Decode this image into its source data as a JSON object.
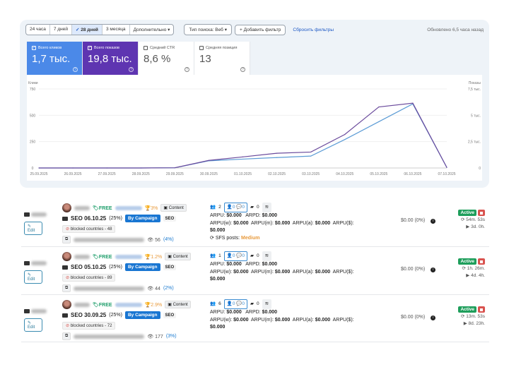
{
  "filters": {
    "periods": [
      "24 часа",
      "7 дней",
      "28 дней",
      "3 месяца"
    ],
    "active_period": "28 дней",
    "more": "Дополнительно",
    "search_type": "Тип поиска: Веб",
    "add_filter": "Добавить фильтр",
    "reset": "Сбросить фильтры",
    "updated": "Обновлено 6,5 часа назад"
  },
  "metrics": [
    {
      "label": "Всего кликов",
      "value": "1,7 тыс.",
      "checked": true,
      "color": "#4b89e8"
    },
    {
      "label": "Всего показов",
      "value": "19,8 тыс.",
      "checked": true,
      "color": "#5e35b1"
    },
    {
      "label": "Средний CTR",
      "value": "8,6 %",
      "checked": false
    },
    {
      "label": "Средняя позиция",
      "value": "13",
      "checked": false
    }
  ],
  "chart_data": {
    "type": "line",
    "x": [
      "25.09.2025",
      "26.09.2025",
      "27.09.2025",
      "28.09.2025",
      "29.09.2025",
      "30.09.2025",
      "01.10.2025",
      "02.10.2025",
      "03.10.2025",
      "04.10.2025",
      "05.10.2025",
      "06.10.2025",
      "07.10.2025"
    ],
    "ylabel": "Клики",
    "y2label": "Показы",
    "ylim": [
      0,
      750
    ],
    "y2lim": [
      0,
      7500
    ],
    "yticks": [
      "0",
      "250",
      "500",
      "750"
    ],
    "y2ticks": [
      "0",
      "2,5 тыс.",
      "5 тыс.",
      "7,5 тыс."
    ],
    "grid": true,
    "series": [
      {
        "axis": "left",
        "color": "#5b9bd5",
        "values": [
          0,
          0,
          0,
          0,
          2,
          68,
          84,
          99,
          113,
          270,
          439,
          608,
          5
        ]
      },
      {
        "axis": "right",
        "color": "#6a4a9c",
        "values": [
          0,
          0,
          0,
          0,
          20,
          720,
          1050,
          1400,
          1510,
          3180,
          5790,
          6150,
          50
        ]
      }
    ]
  },
  "rows": [
    {
      "free": "FREE",
      "trophy": "3%",
      "content": "Content",
      "seo": "SEO 06.10.25",
      "seo_pct": "(25%)",
      "by": "By Campaign",
      "seo_tag": "SEO",
      "blocked": "blocked countries - 48",
      "views": "56",
      "views_pct": "(4%)",
      "edit": "Edit",
      "users": "2",
      "p1": "0",
      "p2": "0",
      "vid": "0",
      "arpu": "ARPU:",
      "arpu_v": "$0.000",
      "arpd": "ARPD:",
      "arpd_v": "$0.000",
      "w": "ARPU(w):",
      "w_v": "$0.000",
      "m": "ARPU(m):",
      "m_v": "$0.000",
      "a": "ARPU(a):",
      "a_v": "$0.000",
      "d": "ARPU($):",
      "d_v": "$0.000",
      "sfs": "SFS posts:",
      "sfs_v": "Medium",
      "money": "$0.00 (0%)",
      "status": "Active",
      "t1": "54m. 53s",
      "t2": "3d. 0h."
    },
    {
      "free": "FREE",
      "trophy": "1.2%",
      "content": "Content",
      "seo": "SEO 05.10.25",
      "seo_pct": "(25%)",
      "by": "By Campaign",
      "seo_tag": "SEO",
      "blocked": "blocked countries - 89",
      "views": "44",
      "views_pct": "(2%)",
      "edit": "Edit",
      "users": "1",
      "p1": "0",
      "p2": "0",
      "vid": "0",
      "arpu": "ARPU:",
      "arpu_v": "$0.000",
      "arpd": "ARPD:",
      "arpd_v": "$0.000",
      "w": "ARPU(w):",
      "w_v": "$0.000",
      "m": "ARPU(m):",
      "m_v": "$0.000",
      "a": "ARPU(a):",
      "a_v": "$0.000",
      "d": "ARPU($):",
      "d_v": "$0.000",
      "money": "$0.00 (0%)",
      "status": "Active",
      "t1": "1h. 26m.",
      "t2": "4d. 4h."
    },
    {
      "free": "FREE",
      "trophy": "2.9%",
      "content": "Content",
      "seo": "SEO 30.09.25",
      "seo_pct": "(25%)",
      "by": "By Campaign",
      "seo_tag": "SEO",
      "blocked": "blocked countries - 72",
      "views": "177",
      "views_pct": "(3%)",
      "edit": "Edit",
      "users": "6",
      "p1": "0",
      "p2": "0",
      "vid": "0",
      "arpu": "ARPU:",
      "arpu_v": "$0.000",
      "arpd": "ARPD:",
      "arpd_v": "$0.000",
      "w": "ARPU(w):",
      "w_v": "$0.000",
      "m": "ARPU(m):",
      "m_v": "$0.000",
      "a": "ARPU(a):",
      "a_v": "$0.000",
      "d": "ARPU($):",
      "d_v": "$0.000",
      "money": "$0.00 (0%)",
      "status": "Active",
      "t1": "13m. 53s",
      "t2": "8d. 23h."
    }
  ]
}
